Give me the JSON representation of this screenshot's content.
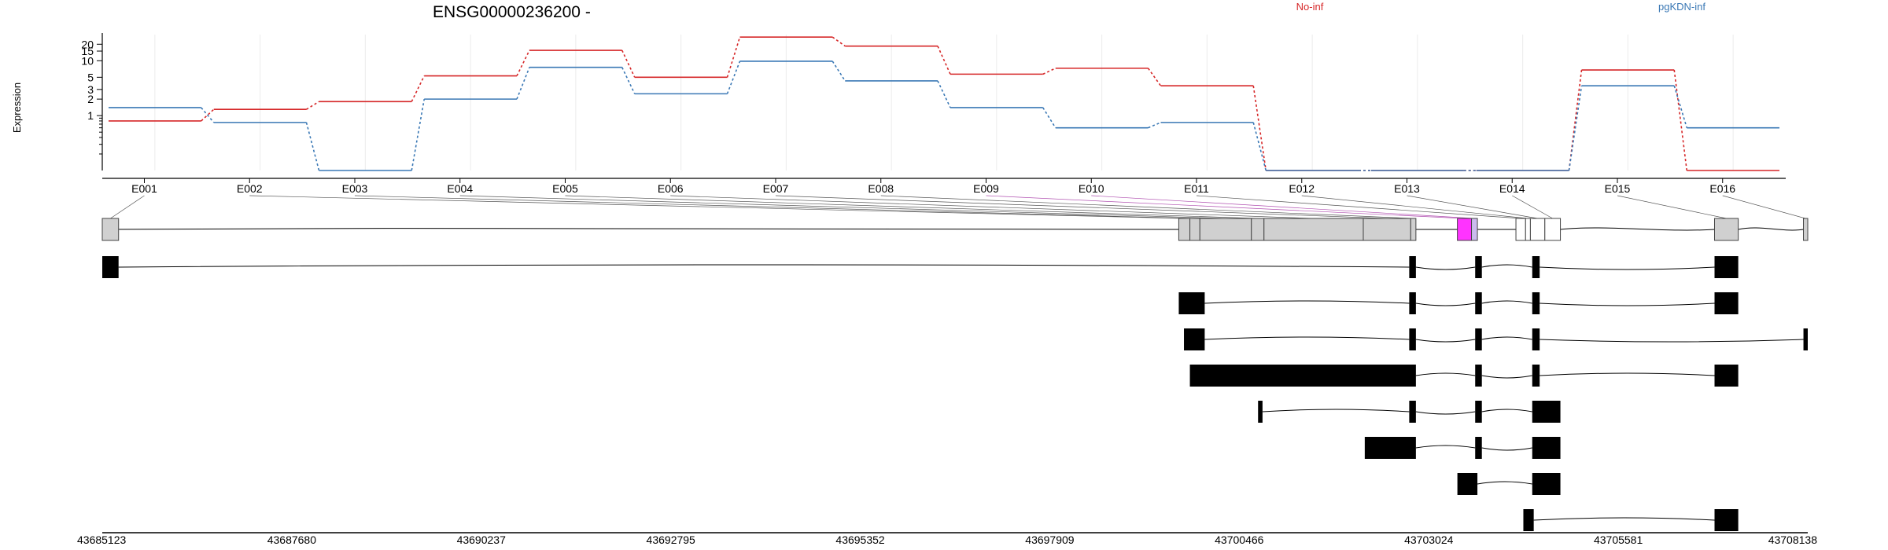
{
  "chart_data": {
    "type": "line",
    "title": "ENSG00000236200 -",
    "ylabel": "Expression",
    "yscale": "log",
    "yticks": [
      1,
      2,
      3,
      5,
      10,
      15,
      20
    ],
    "categories": [
      "E001",
      "E002",
      "E003",
      "E004",
      "E005",
      "E006",
      "E007",
      "E008",
      "E009",
      "E010",
      "E011",
      "E012",
      "E013",
      "E014",
      "E015",
      "E016"
    ],
    "series": [
      {
        "name": "No-inf",
        "color": "#d62728",
        "values": [
          0.8,
          1.3,
          1.8,
          5.3,
          15.5,
          5.0,
          27.0,
          18.5,
          5.7,
          7.3,
          3.5,
          0.1,
          0.1,
          0.1,
          6.8,
          0.1
        ]
      },
      {
        "name": "pgKDN-inf",
        "color": "#3a78b5",
        "values": [
          1.4,
          0.75,
          0.1,
          2.0,
          7.6,
          2.5,
          9.8,
          4.3,
          1.4,
          0.6,
          0.75,
          0.1,
          0.1,
          0.1,
          3.5,
          0.6
        ]
      }
    ],
    "genomic_axis": {
      "ticks": [
        "43685123",
        "43687680",
        "43690237",
        "43692795",
        "43695352",
        "43697909",
        "43700466",
        "43703024",
        "43705581",
        "43708138"
      ],
      "tick_values": [
        43685123,
        43687680,
        43690237,
        43692795,
        43695352,
        43697909,
        43700466,
        43703024,
        43705581,
        43708138
      ]
    },
    "gene_exons": [
      {
        "id": "E001",
        "start": 43685123,
        "end": 43685343,
        "color": "#d0d0d0"
      },
      {
        "id": "E002",
        "start": 43699650,
        "end": 43699800,
        "color": "#d0d0d0"
      },
      {
        "id": "E003",
        "start": 43699800,
        "end": 43699935,
        "color": "#d0d0d0"
      },
      {
        "id": "E004",
        "start": 43699935,
        "end": 43700630,
        "color": "#d0d0d0"
      },
      {
        "id": "E005",
        "start": 43700630,
        "end": 43700800,
        "color": "#d0d0d0"
      },
      {
        "id": "E006",
        "start": 43700800,
        "end": 43702140,
        "color": "#d0d0d0"
      },
      {
        "id": "E007",
        "start": 43702140,
        "end": 43702780,
        "color": "#d0d0d0"
      },
      {
        "id": "E008",
        "start": 43702780,
        "end": 43702850,
        "color": "#d0d0d0"
      },
      {
        "id": "E009",
        "start": 43703410,
        "end": 43703600,
        "color": "#ff33ff"
      },
      {
        "id": "E010",
        "start": 43703600,
        "end": 43703680,
        "color": "#ccbbee"
      },
      {
        "id": "E011",
        "start": 43704200,
        "end": 43704330,
        "color": "#ffffff"
      },
      {
        "id": "E012",
        "start": 43704330,
        "end": 43704395,
        "color": "#ffffff"
      },
      {
        "id": "E013",
        "start": 43704395,
        "end": 43704590,
        "color": "#ffffff"
      },
      {
        "id": "E014",
        "start": 43704590,
        "end": 43704580,
        "color": "#ffffff"
      },
      {
        "id": "E015",
        "start": 43706880,
        "end": 43707200,
        "color": "#d0d0d0"
      },
      {
        "id": "E016",
        "start": 43708080,
        "end": 43708138,
        "color": "#d0d0d0"
      }
    ],
    "transcripts": [
      [
        [
          43685123,
          43685343
        ],
        [
          43702760,
          43702850
        ],
        [
          43703650,
          43703740
        ],
        [
          43704420,
          43704520
        ],
        [
          43706880,
          43707200
        ]
      ],
      [
        [
          43699650,
          43700000
        ],
        [
          43702760,
          43702850
        ],
        [
          43703650,
          43703740
        ],
        [
          43704420,
          43704520
        ],
        [
          43706880,
          43707200
        ]
      ],
      [
        [
          43699720,
          43700000
        ],
        [
          43702760,
          43702850
        ],
        [
          43703650,
          43703740
        ],
        [
          43704420,
          43704520
        ],
        [
          43708080,
          43708138
        ]
      ],
      [
        [
          43699800,
          43702850
        ],
        [
          43703650,
          43703740
        ],
        [
          43704420,
          43704520
        ],
        [
          43706880,
          43707200
        ]
      ],
      [
        [
          43700720,
          43700780
        ],
        [
          43702760,
          43702850
        ],
        [
          43703650,
          43703740
        ],
        [
          43704420,
          43704800
        ]
      ],
      [
        [
          43702160,
          43702850
        ],
        [
          43703650,
          43703740
        ],
        [
          43704420,
          43704800
        ]
      ],
      [
        [
          43703410,
          43703680
        ],
        [
          43704420,
          43704800
        ]
      ],
      [
        [
          43704300,
          43704440
        ],
        [
          43706880,
          43707200
        ]
      ]
    ]
  }
}
